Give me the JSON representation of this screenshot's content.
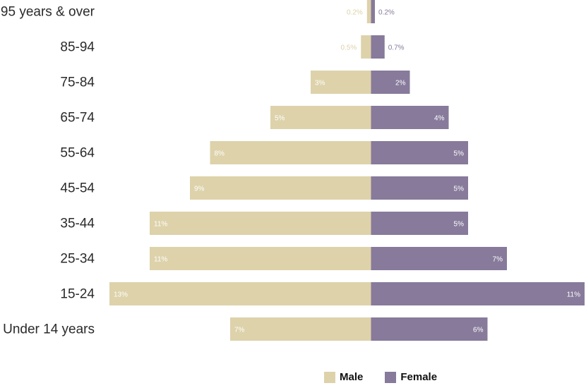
{
  "colors": {
    "male": "#ddd2aa",
    "female": "#877a9b",
    "male_text_inside": "#ffffff",
    "female_text_inside": "#ffffff"
  },
  "chart_data": {
    "type": "bar",
    "orientation": "horizontal-population-pyramid",
    "categories": [
      "95 years & over",
      "85-94",
      "75-84",
      "65-74",
      "55-64",
      "45-54",
      "35-44",
      "25-34",
      "15-24",
      "Under 14 years"
    ],
    "series": [
      {
        "name": "Male",
        "values": [
          0.2,
          0.5,
          3,
          5,
          8,
          9,
          11,
          11,
          13,
          7
        ],
        "labels": [
          "0.2%",
          "0.5%",
          "3%",
          "5%",
          "8%",
          "9%",
          "11%",
          "11%",
          "13%",
          "7%"
        ]
      },
      {
        "name": "Female",
        "values": [
          0.2,
          0.7,
          2,
          4,
          5,
          5,
          5,
          7,
          11,
          6
        ],
        "labels": [
          "0.2%",
          "0.7%",
          "2%",
          "4%",
          "5%",
          "5%",
          "5%",
          "7%",
          "11%",
          "6%"
        ]
      }
    ],
    "legend_position": "bottom",
    "grid": false
  },
  "legend": {
    "male_label": "Male",
    "female_label": "Female"
  }
}
